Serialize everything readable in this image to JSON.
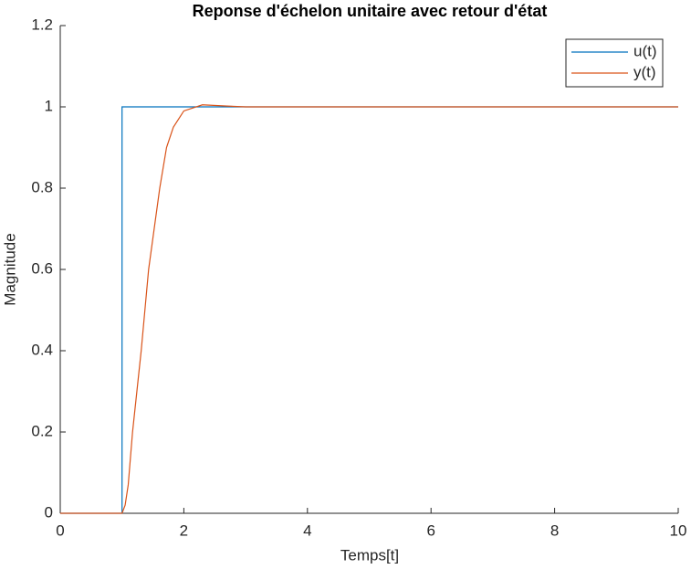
{
  "chart_data": {
    "type": "line",
    "title": "Reponse d'échelon unitaire avec retour d'état",
    "x_label": "Temps[t]",
    "y_label": "Magnitude",
    "xlim": [
      0,
      10
    ],
    "ylim": [
      0,
      1.2
    ],
    "xticks": [
      0,
      2,
      4,
      6,
      8,
      10
    ],
    "yticks": [
      0,
      0.2,
      0.4,
      0.6,
      0.8,
      1,
      1.2
    ],
    "legend": "top-right",
    "series": [
      {
        "name": "u(t)",
        "color": "#0072BD",
        "x": [
          0,
          1,
          1,
          10
        ],
        "values": [
          0,
          0,
          1,
          1
        ]
      },
      {
        "name": "y(t)",
        "color": "#D95319",
        "x": [
          0,
          1,
          1.05,
          1.1,
          1.17,
          1.24,
          1.31,
          1.37,
          1.43,
          1.52,
          1.61,
          1.72,
          1.83,
          2,
          2.3,
          2.7,
          3,
          10
        ],
        "values": [
          0,
          0,
          0.02,
          0.07,
          0.2,
          0.3,
          0.4,
          0.5,
          0.6,
          0.7,
          0.8,
          0.9,
          0.95,
          0.99,
          1.005,
          1.002,
          1,
          1
        ]
      }
    ]
  }
}
